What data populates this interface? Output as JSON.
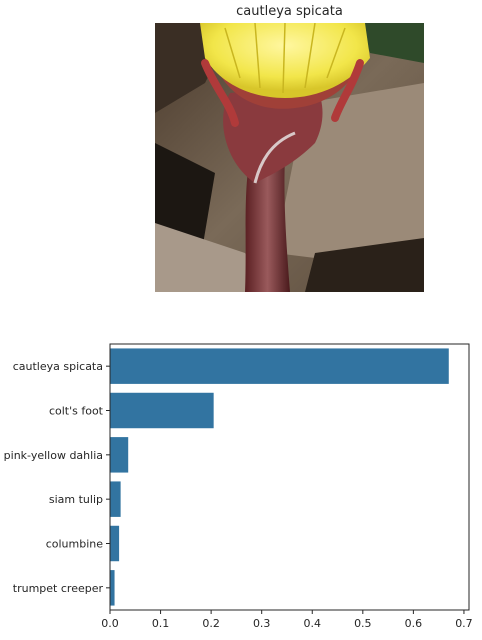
{
  "image_title": "cautleya spicata",
  "chart_data": {
    "type": "bar",
    "orientation": "horizontal",
    "categories": [
      "cautleya spicata",
      "colt's foot",
      "pink-yellow dahlia",
      "siam tulip",
      "columbine",
      "trumpet creeper"
    ],
    "values": [
      0.67,
      0.205,
      0.036,
      0.021,
      0.018,
      0.009
    ],
    "xlim": [
      0,
      0.71
    ],
    "xticks": [
      0.0,
      0.1,
      0.2,
      0.3,
      0.4,
      0.5,
      0.6,
      0.7
    ],
    "xtick_labels": [
      "0.0",
      "0.1",
      "0.2",
      "0.3",
      "0.4",
      "0.5",
      "0.6",
      "0.7"
    ],
    "bar_color": "#3274a1",
    "grid": false
  }
}
